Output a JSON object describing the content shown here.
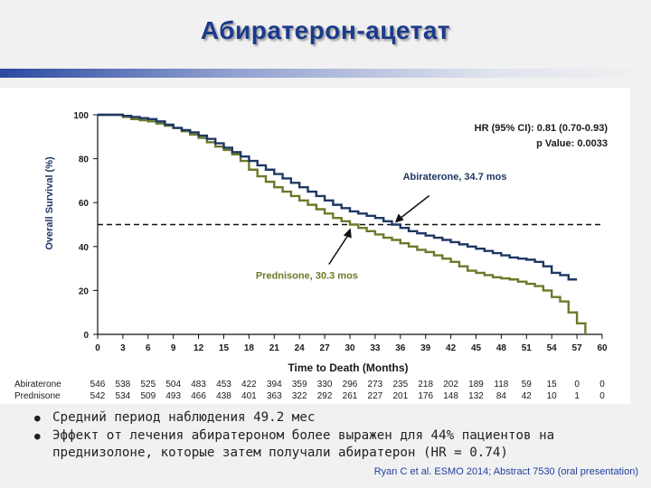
{
  "slide": {
    "title": "Абиратерон-ацетат",
    "bullets": [
      "Средний период наблюдения 49.2 мес",
      "Эффект от лечения абиратероном более выражен для 44% пациентов на преднизолоне, которые затем получали абиратерон (HR = 0.74)"
    ],
    "citation": "Ryan C et al. ESMO 2014; Abstract 7530 (oral presentation)"
  },
  "chart_data": {
    "type": "line",
    "xlabel": "Time to Death (Months)",
    "ylabel": "Overall Survival (%)",
    "xlim": [
      0,
      60
    ],
    "ylim": [
      0,
      100
    ],
    "x_ticks": [
      0,
      3,
      6,
      9,
      12,
      15,
      18,
      21,
      24,
      27,
      30,
      33,
      36,
      39,
      42,
      45,
      48,
      51,
      54,
      57,
      60
    ],
    "y_ticks": [
      0,
      20,
      40,
      60,
      80,
      100
    ],
    "reference_line_y": 50,
    "colors": {
      "abiraterone": "#1f3864",
      "prednisone": "#6b7a2a",
      "annotation": "#6b7a2a"
    },
    "stats": {
      "hr": "HR (95% CI): 0.81  (0.70-0.93)",
      "p": "p Value: 0.0033"
    },
    "annotations": [
      {
        "series": "Abiraterone",
        "label": "Abiraterone, 34.7 mos",
        "x": 34.7,
        "y": 50
      },
      {
        "series": "Prednisone",
        "label": "Prednisone, 30.3 mos",
        "x": 30.3,
        "y": 50
      }
    ],
    "series": [
      {
        "name": "Abiraterone",
        "x": [
          0,
          1,
          2,
          3,
          4,
          5,
          6,
          7,
          8,
          9,
          10,
          11,
          12,
          13,
          14,
          15,
          16,
          17,
          18,
          19,
          20,
          21,
          22,
          23,
          24,
          25,
          26,
          27,
          28,
          29,
          30,
          31,
          32,
          33,
          34,
          35,
          36,
          37,
          38,
          39,
          40,
          41,
          42,
          43,
          44,
          45,
          46,
          47,
          48,
          49,
          50,
          51,
          52,
          53,
          54,
          55,
          56,
          57
        ],
        "y": [
          100,
          100,
          100,
          99.5,
          99,
          98.5,
          98,
          97,
          95.5,
          94,
          93,
          92,
          90.5,
          89,
          87,
          85,
          83,
          81,
          79,
          77,
          75,
          73,
          71,
          69,
          67,
          65,
          63,
          61,
          59,
          57.5,
          56,
          55,
          54,
          53,
          51.5,
          50,
          48.5,
          47,
          46,
          45,
          44,
          43,
          42,
          41,
          40,
          39,
          38,
          37,
          36,
          35,
          34.5,
          34,
          33,
          31,
          28,
          27,
          25,
          25
        ]
      },
      {
        "name": "Prednisone",
        "x": [
          0,
          1,
          2,
          3,
          4,
          5,
          6,
          7,
          8,
          9,
          10,
          11,
          12,
          13,
          14,
          15,
          16,
          17,
          18,
          19,
          20,
          21,
          22,
          23,
          24,
          25,
          26,
          27,
          28,
          29,
          30,
          31,
          32,
          33,
          34,
          35,
          36,
          37,
          38,
          39,
          40,
          41,
          42,
          43,
          44,
          45,
          46,
          47,
          48,
          49,
          50,
          51,
          52,
          53,
          54,
          55,
          56,
          57,
          58
        ],
        "y": [
          100,
          100,
          100,
          99,
          98,
          97.5,
          97,
          96,
          95,
          94,
          92.5,
          91,
          89.5,
          87.5,
          85.5,
          84,
          82,
          79,
          75,
          72,
          69.5,
          67,
          65,
          63,
          61,
          59,
          57,
          55,
          53,
          51.5,
          50,
          48.5,
          47,
          45.5,
          44,
          43,
          41.5,
          40,
          38.5,
          37.5,
          36,
          34.5,
          33,
          31,
          29,
          28,
          27,
          26,
          25.5,
          25,
          24,
          23,
          22,
          20,
          17,
          15,
          10,
          5,
          0
        ]
      }
    ],
    "risk_table": {
      "rows": [
        {
          "label": "Abiraterone",
          "values": [
            "546",
            "538",
            "525",
            "504",
            "483",
            "453",
            "422",
            "394",
            "359",
            "330",
            "296",
            "273",
            "235",
            "218",
            "202",
            "189",
            "118",
            "59",
            "15",
            "0",
            "0"
          ]
        },
        {
          "label": "Prednisone",
          "values": [
            "542",
            "534",
            "509",
            "493",
            "466",
            "438",
            "401",
            "363",
            "322",
            "292",
            "261",
            "227",
            "201",
            "176",
            "148",
            "132",
            "84",
            "42",
            "10",
            "1",
            "0"
          ]
        }
      ]
    }
  }
}
